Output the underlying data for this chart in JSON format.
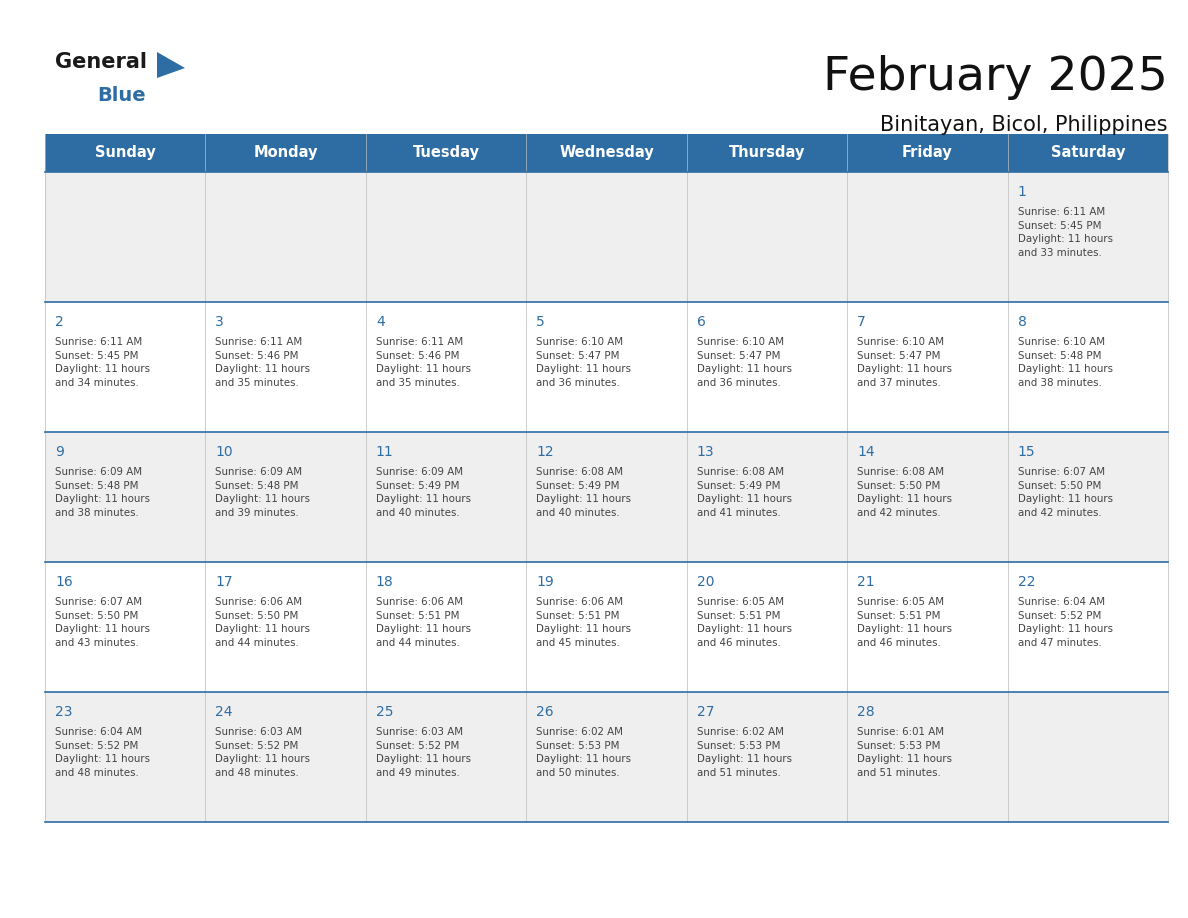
{
  "title": "February 2025",
  "subtitle": "Binitayan, Bicol, Philippines",
  "header_bg": "#2E6DA4",
  "header_text": "#FFFFFF",
  "day_names": [
    "Sunday",
    "Monday",
    "Tuesday",
    "Wednesday",
    "Thursday",
    "Friday",
    "Saturday"
  ],
  "row_bg_odd": "#EFEFEF",
  "row_bg_even": "#FFFFFF",
  "cell_border_color": "#2E6DA4",
  "day_number_color": "#2E6DA4",
  "text_color": "#444444",
  "calendar": [
    [
      null,
      null,
      null,
      null,
      null,
      null,
      {
        "day": 1,
        "sunrise": "6:11 AM",
        "sunset": "5:45 PM",
        "daylight": "11 hours\nand 33 minutes."
      }
    ],
    [
      {
        "day": 2,
        "sunrise": "6:11 AM",
        "sunset": "5:45 PM",
        "daylight": "11 hours\nand 34 minutes."
      },
      {
        "day": 3,
        "sunrise": "6:11 AM",
        "sunset": "5:46 PM",
        "daylight": "11 hours\nand 35 minutes."
      },
      {
        "day": 4,
        "sunrise": "6:11 AM",
        "sunset": "5:46 PM",
        "daylight": "11 hours\nand 35 minutes."
      },
      {
        "day": 5,
        "sunrise": "6:10 AM",
        "sunset": "5:47 PM",
        "daylight": "11 hours\nand 36 minutes."
      },
      {
        "day": 6,
        "sunrise": "6:10 AM",
        "sunset": "5:47 PM",
        "daylight": "11 hours\nand 36 minutes."
      },
      {
        "day": 7,
        "sunrise": "6:10 AM",
        "sunset": "5:47 PM",
        "daylight": "11 hours\nand 37 minutes."
      },
      {
        "day": 8,
        "sunrise": "6:10 AM",
        "sunset": "5:48 PM",
        "daylight": "11 hours\nand 38 minutes."
      }
    ],
    [
      {
        "day": 9,
        "sunrise": "6:09 AM",
        "sunset": "5:48 PM",
        "daylight": "11 hours\nand 38 minutes."
      },
      {
        "day": 10,
        "sunrise": "6:09 AM",
        "sunset": "5:48 PM",
        "daylight": "11 hours\nand 39 minutes."
      },
      {
        "day": 11,
        "sunrise": "6:09 AM",
        "sunset": "5:49 PM",
        "daylight": "11 hours\nand 40 minutes."
      },
      {
        "day": 12,
        "sunrise": "6:08 AM",
        "sunset": "5:49 PM",
        "daylight": "11 hours\nand 40 minutes."
      },
      {
        "day": 13,
        "sunrise": "6:08 AM",
        "sunset": "5:49 PM",
        "daylight": "11 hours\nand 41 minutes."
      },
      {
        "day": 14,
        "sunrise": "6:08 AM",
        "sunset": "5:50 PM",
        "daylight": "11 hours\nand 42 minutes."
      },
      {
        "day": 15,
        "sunrise": "6:07 AM",
        "sunset": "5:50 PM",
        "daylight": "11 hours\nand 42 minutes."
      }
    ],
    [
      {
        "day": 16,
        "sunrise": "6:07 AM",
        "sunset": "5:50 PM",
        "daylight": "11 hours\nand 43 minutes."
      },
      {
        "day": 17,
        "sunrise": "6:06 AM",
        "sunset": "5:50 PM",
        "daylight": "11 hours\nand 44 minutes."
      },
      {
        "day": 18,
        "sunrise": "6:06 AM",
        "sunset": "5:51 PM",
        "daylight": "11 hours\nand 44 minutes."
      },
      {
        "day": 19,
        "sunrise": "6:06 AM",
        "sunset": "5:51 PM",
        "daylight": "11 hours\nand 45 minutes."
      },
      {
        "day": 20,
        "sunrise": "6:05 AM",
        "sunset": "5:51 PM",
        "daylight": "11 hours\nand 46 minutes."
      },
      {
        "day": 21,
        "sunrise": "6:05 AM",
        "sunset": "5:51 PM",
        "daylight": "11 hours\nand 46 minutes."
      },
      {
        "day": 22,
        "sunrise": "6:04 AM",
        "sunset": "5:52 PM",
        "daylight": "11 hours\nand 47 minutes."
      }
    ],
    [
      {
        "day": 23,
        "sunrise": "6:04 AM",
        "sunset": "5:52 PM",
        "daylight": "11 hours\nand 48 minutes."
      },
      {
        "day": 24,
        "sunrise": "6:03 AM",
        "sunset": "5:52 PM",
        "daylight": "11 hours\nand 48 minutes."
      },
      {
        "day": 25,
        "sunrise": "6:03 AM",
        "sunset": "5:52 PM",
        "daylight": "11 hours\nand 49 minutes."
      },
      {
        "day": 26,
        "sunrise": "6:02 AM",
        "sunset": "5:53 PM",
        "daylight": "11 hours\nand 50 minutes."
      },
      {
        "day": 27,
        "sunrise": "6:02 AM",
        "sunset": "5:53 PM",
        "daylight": "11 hours\nand 51 minutes."
      },
      {
        "day": 28,
        "sunrise": "6:01 AM",
        "sunset": "5:53 PM",
        "daylight": "11 hours\nand 51 minutes."
      },
      null
    ]
  ],
  "logo_general_color": "#1A1A1A",
  "logo_blue_color": "#2E6DA4",
  "logo_triangle_color": "#2E6DA4",
  "fig_width": 11.88,
  "fig_height": 9.18
}
